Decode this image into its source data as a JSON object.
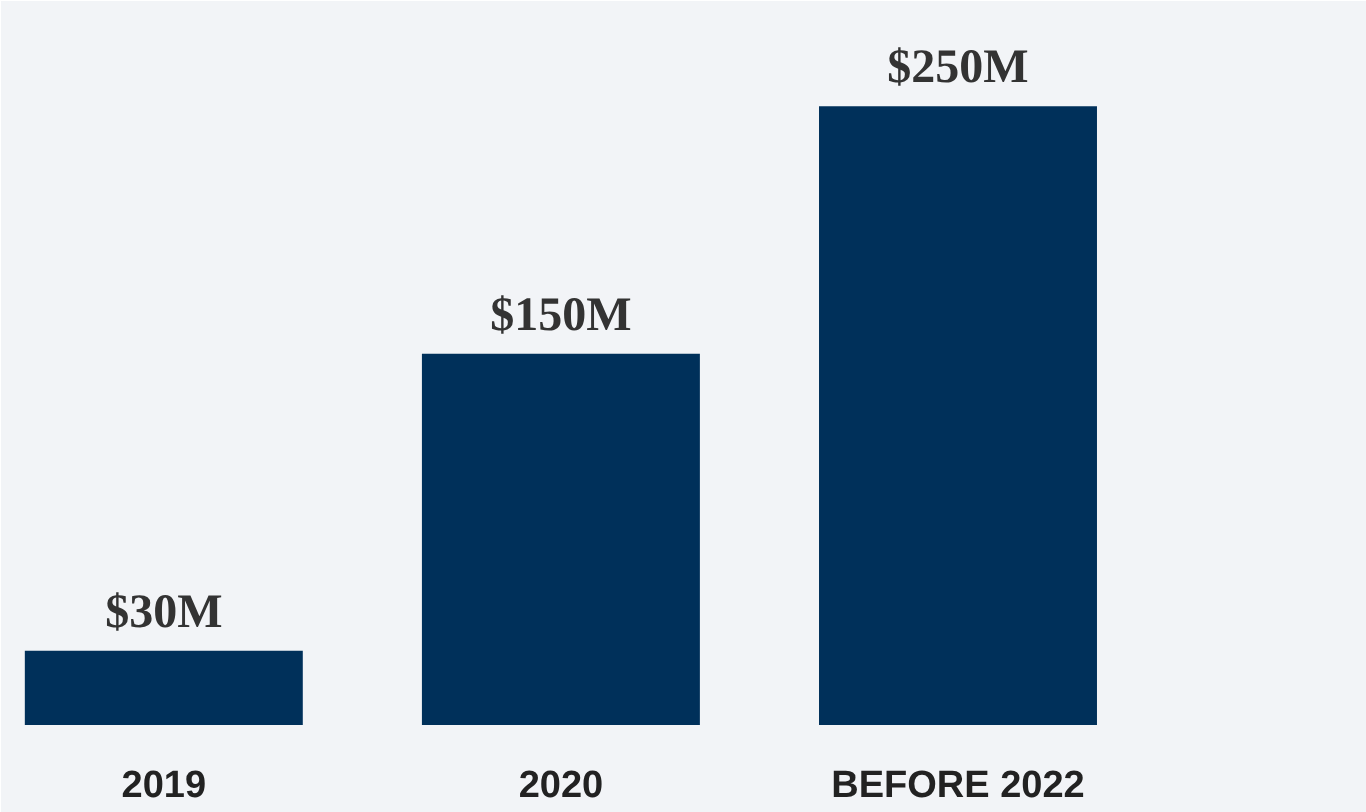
{
  "chart_data": {
    "type": "bar",
    "categories": [
      "2019",
      "2020",
      "BEFORE 2022"
    ],
    "values": [
      30,
      150,
      250
    ],
    "value_labels": [
      "$30M",
      "$150M",
      "$250M"
    ],
    "color": "#00305a"
  }
}
